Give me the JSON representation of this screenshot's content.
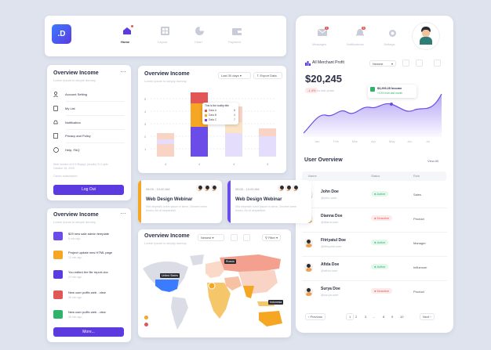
{
  "brand": {
    "logo": ".D"
  },
  "topnav": {
    "items": [
      {
        "label": "Home"
      },
      {
        "label": "Layout"
      },
      {
        "label": "Chart"
      },
      {
        "label": "Payment"
      }
    ]
  },
  "rightnav": {
    "items": [
      {
        "label": "Messages",
        "badge": "1"
      },
      {
        "label": "Notifications",
        "badge": "3"
      },
      {
        "label": "Settings"
      }
    ]
  },
  "overview_menu": {
    "title": "Overview Income",
    "subtitle": "Lorem ipsum is simple dummy",
    "items": [
      {
        "label": "Account Setting"
      },
      {
        "label": "My List"
      },
      {
        "label": "Notification"
      },
      {
        "label": "Privacy and Policy"
      },
      {
        "label": "Help, FAQ"
      }
    ],
    "note": "Web version of 0.9 Stoppy/ (acrylix) 01 Lupin October 26, 2020",
    "cancel": "Cancel subscription",
    "logout": "Log Out"
  },
  "overview_list": {
    "title": "Overview Income",
    "subtitle": "Lorem ipsum is simple dummy",
    "items": [
      {
        "title": "$29 new sale admin template",
        "time": "5 min ago",
        "color": "#6c4ce8"
      },
      {
        "title": "Project update new HTML page",
        "time": "12 min ago",
        "color": "#f5a623"
      },
      {
        "title": "You edited the file report.doc",
        "time": "24 min ago",
        "color": "#5b3be0"
      },
      {
        "title": "New user puffin web - view",
        "time": "36 min ago",
        "color": "#e25656"
      },
      {
        "title": "New user puffin web - view",
        "time": "36 min ago",
        "color": "#2fb36b"
      }
    ],
    "more": "More..."
  },
  "bar_card": {
    "title": "Overview Income",
    "subtitle": "Lorem ipsum is simply dummy",
    "range": "Last 30 days",
    "export": "Export Data",
    "tooltip": {
      "title": "This is the tooltip title",
      "rows": [
        {
          "label": "Data A",
          "value": "8"
        },
        {
          "label": "Data B",
          "value": "4"
        },
        {
          "label": "Data C",
          "value": "7"
        }
      ]
    }
  },
  "chart_data": [
    {
      "type": "bar",
      "title": "Overview Income",
      "x_ticks": [
        "4",
        "4",
        "4",
        "4"
      ],
      "y_ticks": [
        "5",
        "4",
        "3",
        "2",
        "1"
      ],
      "legend": [
        "Data A",
        "Data B",
        "Data C"
      ]
    },
    {
      "type": "area",
      "title": "All Merchant Profit",
      "x": [
        "Jan",
        "Feb",
        "Mar",
        "Apr",
        "May",
        "Jun",
        "Jul"
      ],
      "value_label": "$20,245",
      "change": "-1.4%",
      "change_note": "vs last years",
      "tooltip": "$3,293.25 Income",
      "tooltip_sub": "+10% from last month"
    }
  ],
  "webinars": [
    {
      "time": "08:00 - 10:00 AM",
      "title": "Web Design Webinar",
      "text": "Sed eleyesith lorem ipsum in sieve. Chrome lorem lemon. Ab ull sequentish.",
      "accent": "#f5a623"
    },
    {
      "time": "08:00 - 10:00 AM",
      "title": "Web Design Webinar",
      "text": "Sed eleyesith lorem ipsum in sieve. Chrome lorem lemon. Ab ull sequentish.",
      "accent": "#6c4ce8"
    }
  ],
  "map_card": {
    "title": "Overview Income",
    "subtitle": "Lorem ipsum is simply dummy",
    "filter": "Newest",
    "filter2": "Filter",
    "labels": [
      "United States",
      "Russia",
      "Indonesia"
    ]
  },
  "profit": {
    "title": "All Merchant Profit",
    "filter": "Newest"
  },
  "users": {
    "title": "User Overview",
    "view_all": "View All",
    "headers": [
      "Name",
      "Status",
      "Role"
    ],
    "rows": [
      {
        "name": "John Doe",
        "email": "@john.user",
        "status": "Active",
        "role": "Sales"
      },
      {
        "name": "Dianna Doe",
        "email": "@diana.user",
        "status": "Deactive",
        "role": "Product"
      },
      {
        "name": "Fitriyatul Doe",
        "email": "@fitriyatul.user",
        "status": "Active",
        "role": "Manager"
      },
      {
        "name": "Afida Doe",
        "email": "@afida.user",
        "status": "Active",
        "role": "Influencer"
      },
      {
        "name": "Surya Doe",
        "email": "@surya.user",
        "status": "Deactive",
        "role": "Product"
      }
    ],
    "pager": {
      "prev": "Previous",
      "next": "Next",
      "pages": [
        "1",
        "2",
        "3",
        "...",
        "8",
        "9",
        "10"
      ]
    }
  },
  "colors": {
    "primary": "#5b3be0",
    "accent": "#f5a623",
    "danger": "#e25656",
    "success": "#2fb36b"
  }
}
